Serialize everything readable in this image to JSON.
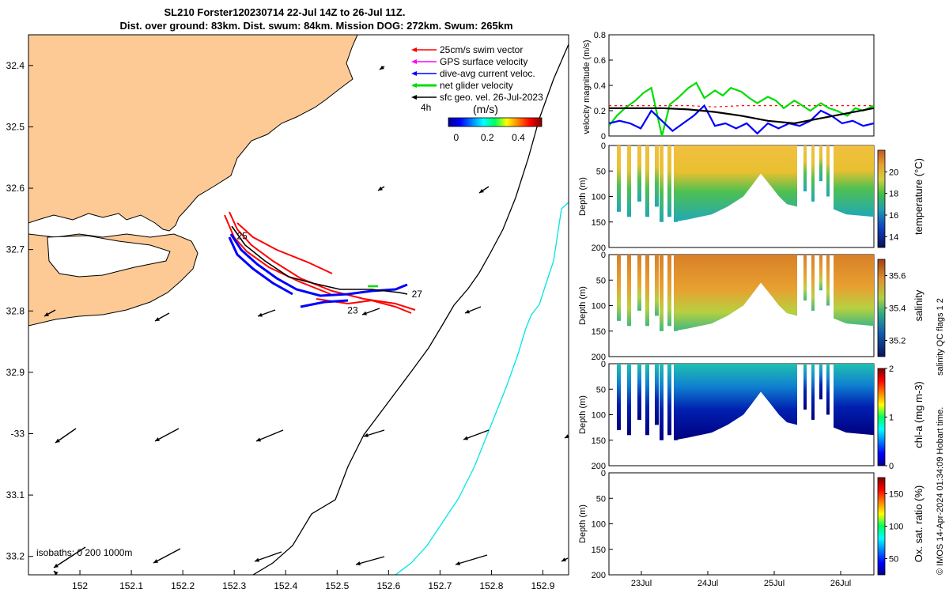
{
  "title_line1": "SL210 Forster120230714 22-Jul 14Z to 26-Jul 11Z.",
  "title_line2": "Dist. over ground: 83km. Dist. swum: 84km. Mission DOG: 272km. Swum: 265km",
  "colors": {
    "land": "#fdca96",
    "isobath_200": "#000000",
    "isobath_1000": "#00e5e5",
    "swim": "#ff0000",
    "gps": "#ff00ff",
    "dive_avg": "#0000ff",
    "net": "#00dd00",
    "geo": "#000000"
  },
  "map": {
    "legend": [
      {
        "label": "25cm/s swim vector",
        "color": "#ff0000"
      },
      {
        "label": "GPS surface velocity",
        "color": "#ff00ff"
      },
      {
        "label": "dive-avg current veloc.",
        "color": "#0000ff"
      },
      {
        "label": "net glider velocity",
        "color": "#00dd00"
      },
      {
        "label": "sfc geo. vel. 26-Jul-2023",
        "color": "#000000"
      }
    ],
    "interval_label": "4h",
    "colorbar_unit": "(m/s)",
    "colorbar_ticks": [
      "0",
      "0.2",
      "0.4"
    ],
    "colorbar_range": [
      -0.05,
      0.55
    ],
    "lon_ticks": [
      "152",
      "152.1",
      "152.2",
      "152.3",
      "152.4",
      "152.5",
      "152.6",
      "152.7",
      "152.8",
      "152.9"
    ],
    "lat_ticks": [
      "32.4",
      "32.5",
      "32.6",
      "32.7",
      "32.8",
      "32.9",
      "-33",
      "33.1",
      "33.2"
    ],
    "lon_range": [
      151.9,
      152.95
    ],
    "lat_range": [
      -32.35,
      -33.23
    ],
    "isobath_label": "isobaths: 0   200  1000m",
    "day_labels": [
      {
        "label": "25",
        "lon": 152.305,
        "lat": -32.683
      },
      {
        "label": "27",
        "lon": 152.645,
        "lat": -32.778
      },
      {
        "label": "23",
        "lon": 152.52,
        "lat": -32.804
      }
    ]
  },
  "velocity_panel": {
    "ylabel": "velocity magnitude (m/s)",
    "yticks": [
      "0",
      "0.2",
      "0.4",
      "0.6",
      "0.8"
    ],
    "ylim": [
      0,
      0.8
    ]
  },
  "depth_panels": [
    {
      "id": "temperature",
      "ylabel": "Depth (m)",
      "cbar_label": "temperature (°C)",
      "cbar_ticks": [
        "14",
        "16",
        "18",
        "20"
      ],
      "cbar_range": [
        13,
        22
      ]
    },
    {
      "id": "salinity",
      "ylabel": "Depth (m)",
      "cbar_label": "salinity",
      "cbar_ticks": [
        "35.2",
        "35.4",
        "35.6"
      ],
      "cbar_range": [
        35.1,
        35.7
      ]
    },
    {
      "id": "chla",
      "ylabel": "Depth (m)",
      "cbar_label": "chl-a (mg m-3)",
      "cbar_ticks": [
        "0",
        "1",
        "2"
      ],
      "cbar_range": [
        0,
        2
      ]
    },
    {
      "id": "oxygen",
      "ylabel": "Depth (m)",
      "cbar_label": "Ox. sat. ratio (%)",
      "cbar_ticks": [
        "50",
        "100",
        "150"
      ],
      "cbar_range": [
        25,
        175
      ]
    }
  ],
  "depth_ticks": [
    "0",
    "50",
    "100",
    "150",
    "200"
  ],
  "depth_range": [
    0,
    200
  ],
  "time_ticks": [
    "23Jul",
    "24Jul",
    "25Jul",
    "26Jul"
  ],
  "qc_label": "salinity QC flags 1  2",
  "footer": "© IMOS 14-Apr-2024 01:34:09 Hobart time.",
  "chart_data": [
    {
      "type": "line",
      "series": [
        {
          "color": "#ff0000",
          "t": [
            0.0,
            0.1,
            0.2,
            0.3,
            0.4,
            0.5,
            0.6,
            0.7,
            0.8,
            0.9,
            1.0
          ],
          "values": [
            0.24,
            0.24,
            0.24,
            0.24,
            0.23,
            0.24,
            0.24,
            0.24,
            0.24,
            0.24,
            0.24
          ]
        },
        {
          "color": "#00dd00",
          "t": [
            0.0,
            0.03,
            0.06,
            0.1,
            0.13,
            0.16,
            0.2,
            0.23,
            0.26,
            0.3,
            0.33,
            0.36,
            0.4,
            0.43,
            0.46,
            0.5,
            0.53,
            0.56,
            0.6,
            0.63,
            0.66,
            0.7,
            0.73,
            0.76,
            0.8,
            0.83,
            0.86,
            0.9,
            0.93,
            0.96,
            1.0
          ],
          "values": [
            0.08,
            0.16,
            0.22,
            0.28,
            0.34,
            0.38,
            0.0,
            0.25,
            0.3,
            0.38,
            0.42,
            0.3,
            0.36,
            0.32,
            0.38,
            0.35,
            0.3,
            0.26,
            0.31,
            0.28,
            0.22,
            0.28,
            0.24,
            0.2,
            0.26,
            0.22,
            0.2,
            0.16,
            0.22,
            0.2,
            0.24
          ]
        },
        {
          "color": "#0000ff",
          "t": [
            0.0,
            0.04,
            0.08,
            0.12,
            0.16,
            0.2,
            0.24,
            0.28,
            0.32,
            0.36,
            0.4,
            0.44,
            0.48,
            0.52,
            0.56,
            0.6,
            0.64,
            0.68,
            0.72,
            0.76,
            0.8,
            0.84,
            0.88,
            0.92,
            0.96,
            1.0
          ],
          "values": [
            0.1,
            0.12,
            0.1,
            0.06,
            0.2,
            0.12,
            0.04,
            0.1,
            0.16,
            0.24,
            0.08,
            0.1,
            0.06,
            0.1,
            0.02,
            0.1,
            0.06,
            0.1,
            0.08,
            0.12,
            0.2,
            0.16,
            0.1,
            0.12,
            0.08,
            0.1
          ]
        },
        {
          "color": "#000000",
          "t": [
            0.0,
            0.1,
            0.2,
            0.3,
            0.4,
            0.5,
            0.6,
            0.7,
            0.8,
            0.9,
            1.0
          ],
          "values": [
            0.22,
            0.22,
            0.22,
            0.21,
            0.19,
            0.16,
            0.12,
            0.1,
            0.14,
            0.18,
            0.22
          ]
        }
      ]
    }
  ]
}
